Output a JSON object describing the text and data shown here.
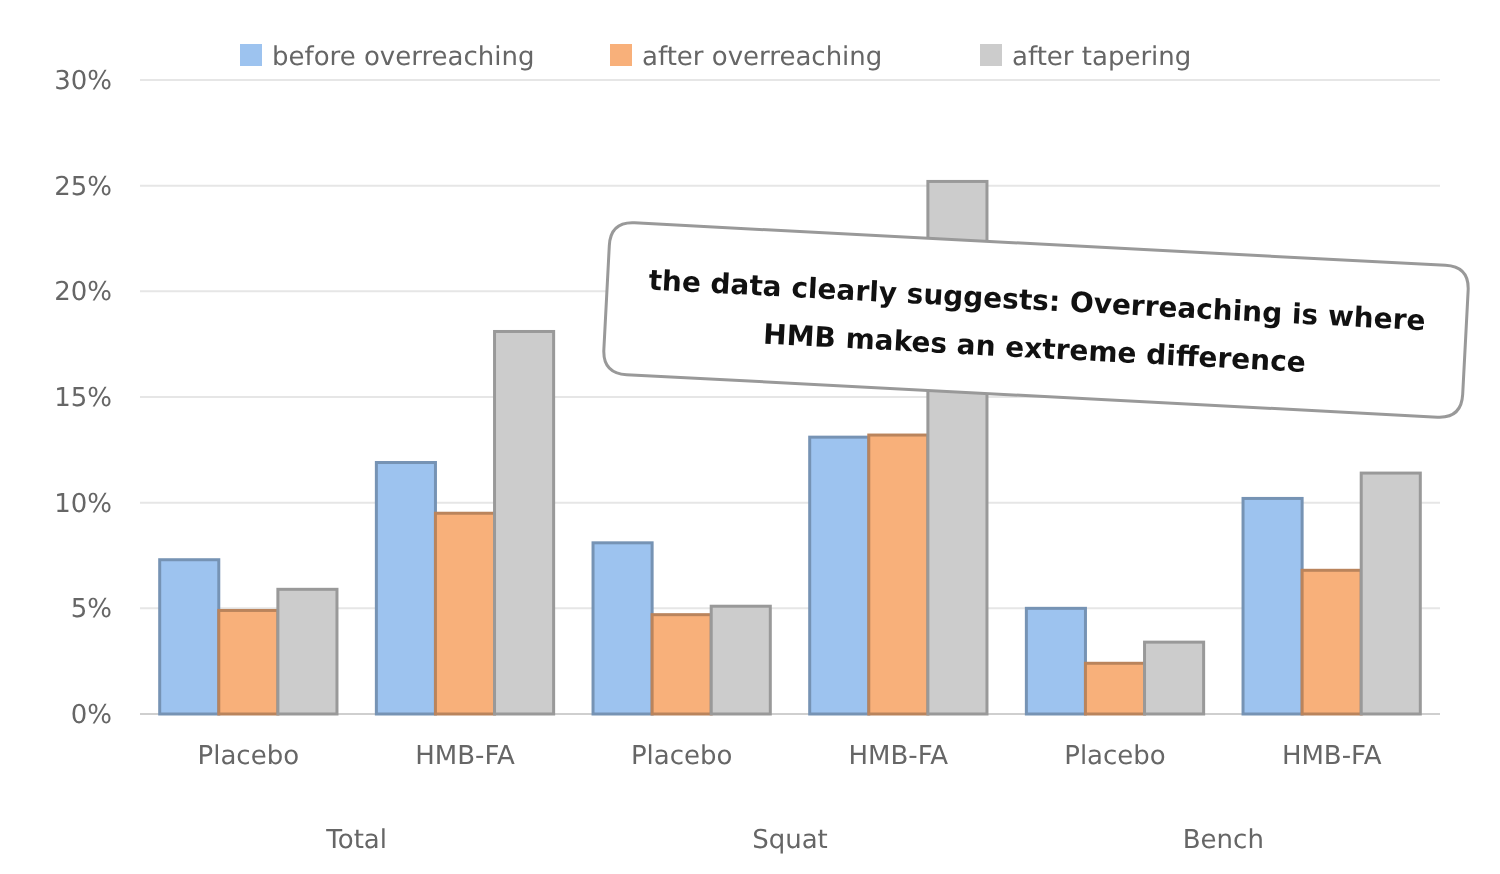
{
  "chart_data": {
    "type": "bar",
    "categories": [
      "Placebo",
      "HMB-FA",
      "Placebo",
      "HMB-FA",
      "Placebo",
      "HMB-FA"
    ],
    "series": [
      {
        "name": "before overreaching",
        "color": "#9dc3ef",
        "values": [
          7.3,
          11.9,
          8.1,
          13.1,
          5.0,
          10.2
        ]
      },
      {
        "name": "after overreaching",
        "color": "#f8b07a",
        "values": [
          4.9,
          9.5,
          4.7,
          13.2,
          2.4,
          6.8
        ]
      },
      {
        "name": "after tapering",
        "color": "#cccccc",
        "values": [
          5.9,
          18.1,
          5.1,
          25.2,
          3.4,
          11.4
        ]
      }
    ],
    "ylim": [
      0,
      30
    ],
    "yticks": [
      {
        "value": 0,
        "label": "0%"
      },
      {
        "value": 5,
        "label": "5%"
      },
      {
        "value": 10,
        "label": "10%"
      },
      {
        "value": 15,
        "label": "15%"
      },
      {
        "value": 20,
        "label": "20%"
      },
      {
        "value": 25,
        "label": "25%"
      },
      {
        "value": 30,
        "label": "30%"
      }
    ],
    "grid": "y",
    "legend": "top",
    "annotations": [
      "Total",
      "Squat",
      "Bench",
      "the data clearly suggests: Overreaching is where HMB makes an extreme difference"
    ]
  }
}
